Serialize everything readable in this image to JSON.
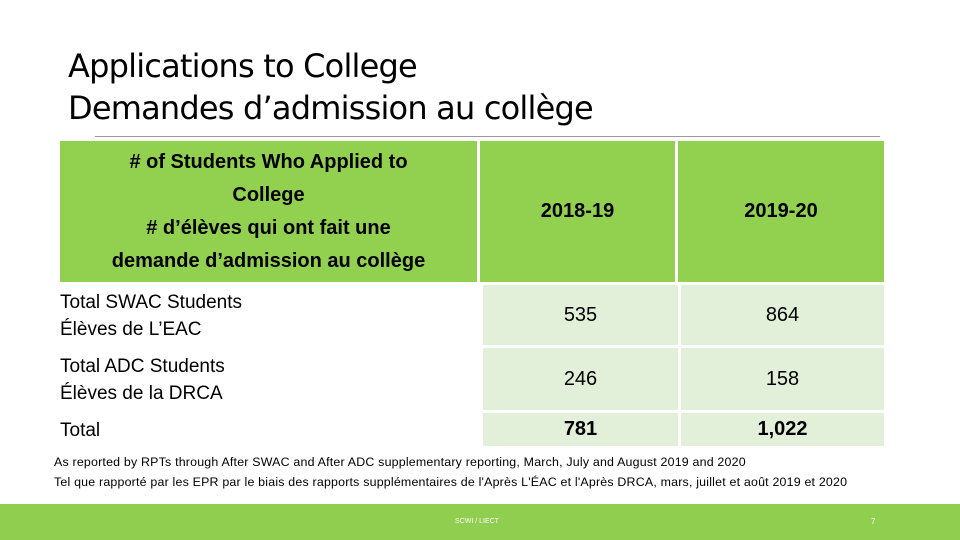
{
  "slide": {
    "title_line1": "Applications to College",
    "title_line2": "Demandes d’admission au collège"
  },
  "table": {
    "header": {
      "label_en_a": "# of Students Who Applied to",
      "label_en_b": "College",
      "label_fr_a": "# d’élèves qui ont fait une",
      "label_fr_b": "demande d’admission au collège",
      "col1": "2018-19",
      "col2": "2019-20"
    },
    "rows": [
      {
        "label_en": "Total SWAC Students",
        "label_fr": "Élèves de L’EAC",
        "v1": "535",
        "v2": "864"
      },
      {
        "label_en": "Total ADC Students",
        "label_fr": "Élèves de la DRCA",
        "v1": "246",
        "v2": "158"
      },
      {
        "label_en": "Total",
        "label_fr": "",
        "v1": "781",
        "v2": "1,022"
      }
    ]
  },
  "note": {
    "line1": "As reported by RPTs through After SWAC and After ADC supplementary reporting, March, July and August 2019 and 2020",
    "line2": "Tel que rapporté par les EPR par le biais des rapports supplémentaires de l'Après L'ÉAC et  l'Après DRCA, mars, juillet et août 2019 et 2020"
  },
  "footer": {
    "org": "SCWI / LIECT",
    "page": "7"
  },
  "colors": {
    "header_green": "#92d050",
    "cell_light_green": "#e2efd9",
    "footer_green": "#8fce4f"
  }
}
